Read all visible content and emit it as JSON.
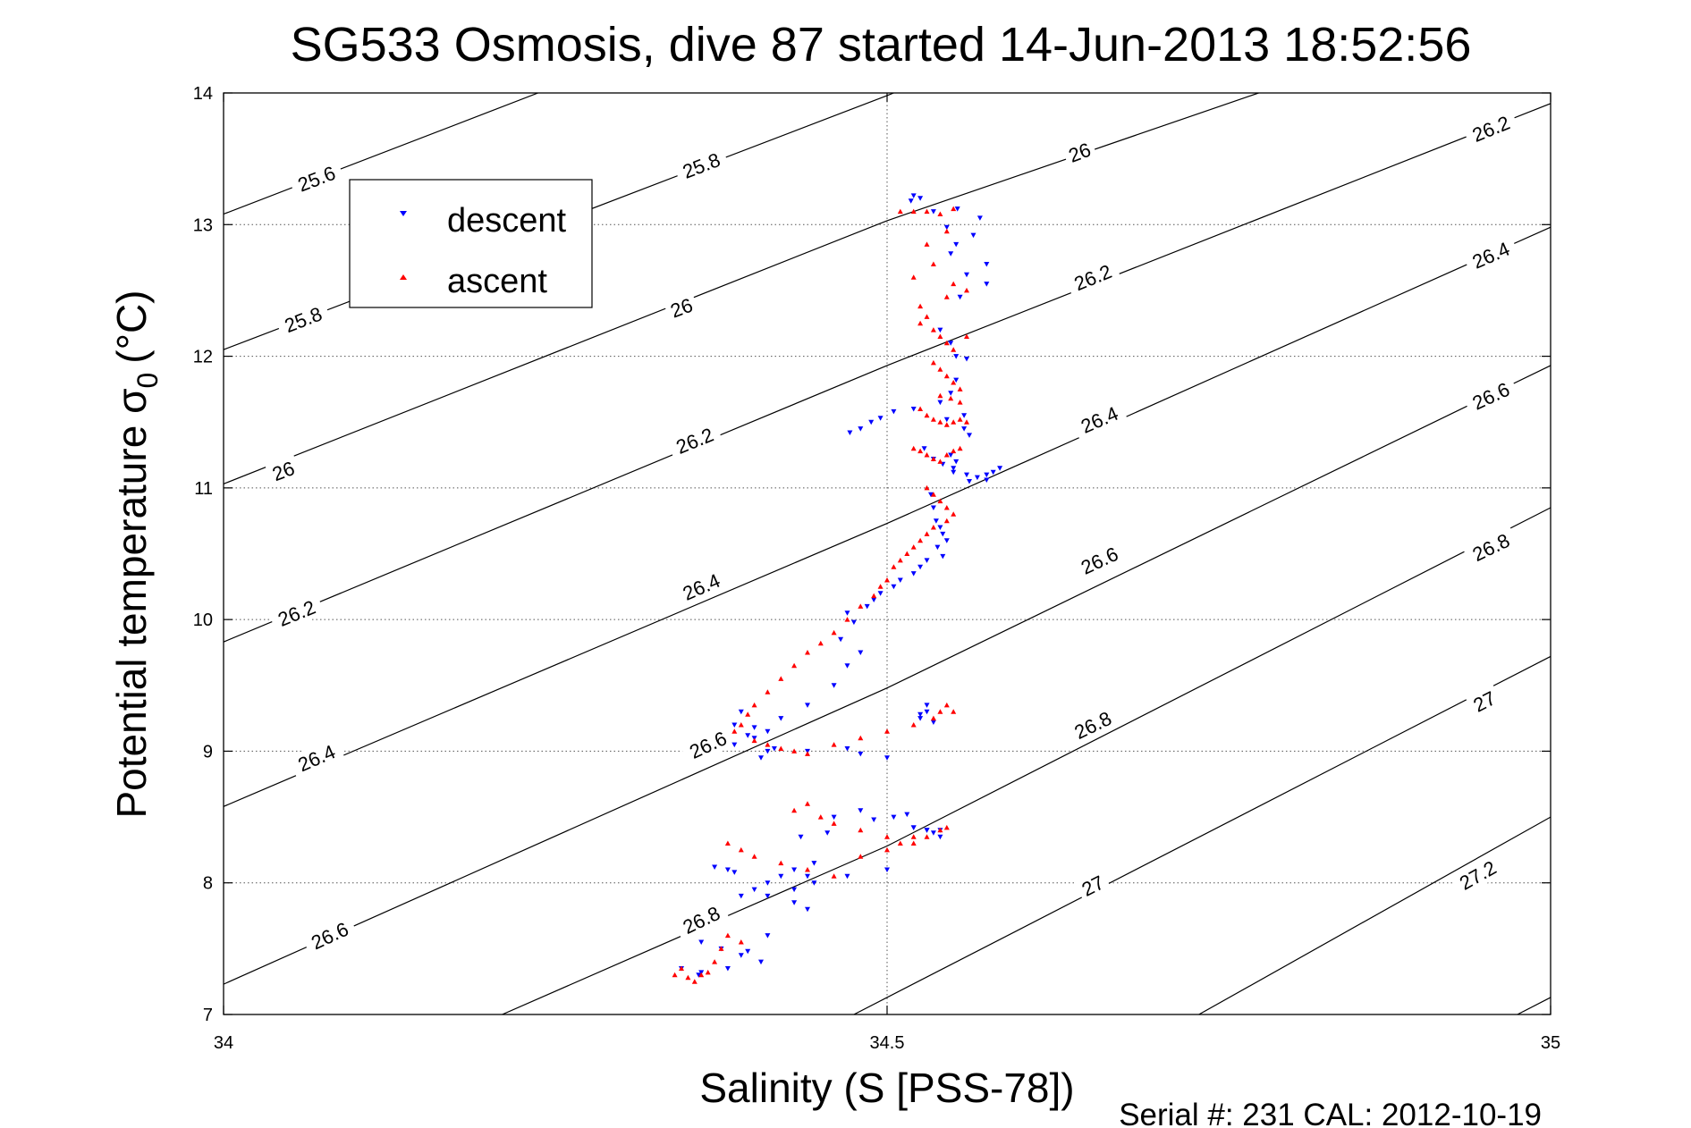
{
  "chart_data": {
    "type": "scatter",
    "title": "SG533 Osmosis, dive 87 started 14-Jun-2013 18:52:56",
    "xlabel": "Salinity (S [PSS-78])",
    "ylabel_main": "Potential temperature σ",
    "ylabel_sub": "0",
    "ylabel_unit": "(°C)",
    "footer": "Serial #: 231  CAL: 2012-10-19",
    "xlim": [
      34,
      35
    ],
    "ylim": [
      7,
      14
    ],
    "xticks": [
      {
        "value": 34,
        "label": "34"
      },
      {
        "value": 34.5,
        "label": "34.5"
      },
      {
        "value": 35,
        "label": "35"
      }
    ],
    "yticks": [
      {
        "value": 7,
        "label": "7"
      },
      {
        "value": 8,
        "label": "8"
      },
      {
        "value": 9,
        "label": "9"
      },
      {
        "value": 10,
        "label": "10"
      },
      {
        "value": 11,
        "label": "11"
      },
      {
        "value": 12,
        "label": "12"
      },
      {
        "value": 13,
        "label": "13"
      },
      {
        "value": 14,
        "label": "14"
      }
    ],
    "grid": true,
    "legend": {
      "position": "top-left",
      "entries": [
        {
          "name": "descent",
          "color": "#0000ff",
          "marker": "triangle-down"
        },
        {
          "name": "ascent",
          "color": "#ff0000",
          "marker": "triangle-up"
        }
      ]
    },
    "isopycnals": [
      {
        "sigma": 25.6,
        "label": "25.6",
        "points": [
          [
            34.0,
            13.08
          ],
          [
            34.237,
            14.0
          ]
        ],
        "labels": [
          {
            "text": "25.6",
            "at": [
              34.07,
              13.35
            ]
          }
        ]
      },
      {
        "sigma": 25.8,
        "label": "25.8",
        "points": [
          [
            34.0,
            12.05
          ],
          [
            34.5,
            13.98
          ],
          [
            34.505,
            14.0
          ]
        ],
        "labels": [
          {
            "text": "25.8",
            "at": [
              34.06,
              12.28
            ]
          },
          {
            "text": "25.8",
            "at": [
              34.36,
              13.45
            ]
          }
        ]
      },
      {
        "sigma": 26.0,
        "label": "26",
        "points": [
          [
            34.0,
            11.03
          ],
          [
            34.5,
            13.03
          ],
          [
            34.78,
            14.0
          ]
        ],
        "labels": [
          {
            "text": "26",
            "at": [
              34.045,
              11.13
            ]
          },
          {
            "text": "26",
            "at": [
              34.345,
              12.37
            ]
          },
          {
            "text": "26",
            "at": [
              34.645,
              13.55
            ]
          }
        ]
      },
      {
        "sigma": 26.2,
        "label": "26.2",
        "points": [
          [
            34.0,
            9.83
          ],
          [
            34.5,
            11.93
          ],
          [
            35.0,
            13.92
          ]
        ],
        "labels": [
          {
            "text": "26.2",
            "at": [
              34.055,
              10.05
            ]
          },
          {
            "text": "26.2",
            "at": [
              34.355,
              11.36
            ]
          },
          {
            "text": "26.2",
            "at": [
              34.655,
              12.6
            ]
          },
          {
            "text": "26.2",
            "at": [
              34.955,
              13.73
            ]
          }
        ]
      },
      {
        "sigma": 26.4,
        "label": "26.4",
        "points": [
          [
            34.0,
            8.58
          ],
          [
            34.5,
            10.73
          ],
          [
            35.0,
            12.98
          ]
        ],
        "labels": [
          {
            "text": "26.4",
            "at": [
              34.07,
              8.95
            ]
          },
          {
            "text": "26.4",
            "at": [
              34.36,
              10.25
            ]
          },
          {
            "text": "26.4",
            "at": [
              34.66,
              11.52
            ]
          },
          {
            "text": "26.4",
            "at": [
              34.955,
              12.77
            ]
          }
        ]
      },
      {
        "sigma": 26.6,
        "label": "26.6",
        "points": [
          [
            34.0,
            7.23
          ],
          [
            34.5,
            9.48
          ],
          [
            35.0,
            11.93
          ]
        ],
        "labels": [
          {
            "text": "26.6",
            "at": [
              34.08,
              7.6
            ]
          },
          {
            "text": "26.6",
            "at": [
              34.365,
              9.05
            ]
          },
          {
            "text": "26.6",
            "at": [
              34.66,
              10.45
            ]
          },
          {
            "text": "26.6",
            "at": [
              34.955,
              11.7
            ]
          }
        ]
      },
      {
        "sigma": 26.8,
        "label": "26.8",
        "points": [
          [
            34.21,
            7.0
          ],
          [
            34.5,
            8.28
          ],
          [
            35.0,
            10.85
          ]
        ],
        "labels": [
          {
            "text": "26.8",
            "at": [
              34.36,
              7.72
            ]
          },
          {
            "text": "26.8",
            "at": [
              34.655,
              9.2
            ]
          },
          {
            "text": "26.8",
            "at": [
              34.955,
              10.55
            ]
          }
        ]
      },
      {
        "sigma": 27.0,
        "label": "27",
        "points": [
          [
            34.475,
            7.0
          ],
          [
            35.0,
            9.72
          ]
        ],
        "labels": [
          {
            "text": "27",
            "at": [
              34.655,
              7.98
            ]
          },
          {
            "text": "27",
            "at": [
              34.95,
              9.38
            ]
          }
        ]
      },
      {
        "sigma": 27.2,
        "label": "27.2",
        "points": [
          [
            34.735,
            7.0
          ],
          [
            35.0,
            8.5
          ]
        ],
        "labels": [
          {
            "text": "27.2",
            "at": [
              34.945,
              8.06
            ]
          }
        ]
      },
      {
        "sigma": 27.4,
        "label": "",
        "points": [
          [
            34.975,
            7.0
          ],
          [
            35.0,
            7.13
          ]
        ],
        "labels": []
      }
    ],
    "series": [
      {
        "name": "descent",
        "color": "#0000ff",
        "marker": "triangle-down",
        "x": [
          34.52,
          34.525,
          34.518,
          34.535,
          34.553,
          34.545,
          34.57,
          34.565,
          34.552,
          34.548,
          34.575,
          34.575,
          34.56,
          34.555,
          34.54,
          34.548,
          34.552,
          34.56,
          34.552,
          34.548,
          34.54,
          34.545,
          34.558,
          34.558,
          34.562,
          34.472,
          34.48,
          34.488,
          34.495,
          34.505,
          34.52,
          34.528,
          34.535,
          34.542,
          34.55,
          34.56,
          34.548,
          34.55,
          34.552,
          34.562,
          34.568,
          34.575,
          34.58,
          34.585,
          34.575,
          34.533,
          34.535,
          34.537,
          34.54,
          34.542,
          34.545,
          34.538,
          34.542,
          34.53,
          34.525,
          34.52,
          34.51,
          34.505,
          34.495,
          34.49,
          34.485,
          34.47,
          34.475,
          34.465,
          34.48,
          34.47,
          34.46,
          34.44,
          34.42,
          34.4,
          34.395,
          34.385,
          34.39,
          34.385,
          34.4,
          34.41,
          34.415,
          34.41,
          34.405,
          34.44,
          34.47,
          34.48,
          34.5,
          34.525,
          34.53,
          34.525,
          34.53,
          34.535,
          34.435,
          34.455,
          34.46,
          34.48,
          34.49,
          34.505,
          34.515,
          34.52,
          34.53,
          34.54,
          34.445,
          34.43,
          34.42,
          34.41,
          34.4,
          34.39,
          34.41,
          34.43,
          34.445,
          34.36,
          34.375,
          34.345,
          34.358,
          34.36,
          34.52,
          34.53,
          34.535,
          34.54,
          34.44,
          34.47,
          34.5,
          34.44,
          34.43,
          34.37,
          34.38,
          34.385,
          34.39,
          34.395,
          34.38,
          34.405,
          34.41
        ],
        "y": [
          13.22,
          13.2,
          13.18,
          13.1,
          13.12,
          12.98,
          13.05,
          12.92,
          12.85,
          12.78,
          12.7,
          12.55,
          12.62,
          12.45,
          12.2,
          12.1,
          12.0,
          11.98,
          11.82,
          11.72,
          11.65,
          11.52,
          11.45,
          11.55,
          11.4,
          11.42,
          11.45,
          11.5,
          11.53,
          11.58,
          11.6,
          11.3,
          11.22,
          11.18,
          11.12,
          11.1,
          11.25,
          11.15,
          11.2,
          11.05,
          11.08,
          11.1,
          11.12,
          11.15,
          11.06,
          10.95,
          10.85,
          10.75,
          10.7,
          10.65,
          10.6,
          10.55,
          10.48,
          10.45,
          10.4,
          10.35,
          10.3,
          10.25,
          10.2,
          10.15,
          10.1,
          10.05,
          9.98,
          9.85,
          9.75,
          9.65,
          9.5,
          9.35,
          9.25,
          9.18,
          9.12,
          9.2,
          9.3,
          9.05,
          9.1,
          9.15,
          9.02,
          9.0,
          8.95,
          9.0,
          9.02,
          8.98,
          8.95,
          9.28,
          9.3,
          9.25,
          9.35,
          9.22,
          8.35,
          8.38,
          8.5,
          8.55,
          8.48,
          8.5,
          8.52,
          8.42,
          8.4,
          8.4,
          8.15,
          8.1,
          8.05,
          8.0,
          7.95,
          7.9,
          7.9,
          7.95,
          8.0,
          7.55,
          7.5,
          7.35,
          7.3,
          7.32,
          8.42,
          8.4,
          8.38,
          8.35,
          8.05,
          8.05,
          8.1,
          7.8,
          7.85,
          8.12,
          8.1,
          8.08,
          7.45,
          7.48,
          7.35,
          7.4,
          7.6
        ]
      },
      {
        "name": "ascent",
        "color": "#ff0000",
        "marker": "triangle-up",
        "x": [
          34.51,
          34.52,
          34.53,
          34.54,
          34.55,
          34.545,
          34.53,
          34.535,
          34.52,
          34.55,
          34.56,
          34.545,
          34.525,
          34.53,
          34.525,
          34.535,
          34.54,
          34.545,
          34.55,
          34.56,
          34.535,
          34.54,
          34.545,
          34.55,
          34.555,
          34.54,
          34.548,
          34.555,
          34.525,
          34.53,
          34.535,
          34.54,
          34.545,
          34.55,
          34.555,
          34.56,
          34.52,
          34.525,
          34.53,
          34.535,
          34.54,
          34.545,
          34.55,
          34.555,
          34.53,
          34.535,
          34.54,
          34.545,
          34.55,
          34.545,
          34.535,
          34.53,
          34.525,
          34.52,
          34.515,
          34.51,
          34.505,
          34.5,
          34.495,
          34.49,
          34.48,
          34.47,
          34.46,
          34.45,
          34.44,
          34.43,
          34.42,
          34.41,
          34.4,
          34.395,
          34.39,
          34.385,
          34.4,
          34.41,
          34.42,
          34.43,
          34.44,
          34.46,
          34.48,
          34.5,
          34.52,
          34.535,
          34.54,
          34.545,
          34.55,
          34.43,
          34.44,
          34.45,
          34.46,
          34.48,
          34.5,
          34.52,
          34.53,
          34.54,
          34.545,
          34.38,
          34.39,
          34.4,
          34.42,
          34.44,
          34.46,
          34.48,
          34.5,
          34.51,
          34.52,
          34.34,
          34.345,
          34.35,
          34.355,
          34.36,
          34.365,
          34.37,
          34.375,
          34.38,
          34.39
        ],
        "y": [
          13.1,
          13.1,
          13.1,
          13.08,
          13.12,
          12.95,
          12.85,
          12.7,
          12.6,
          12.55,
          12.5,
          12.45,
          12.38,
          12.3,
          12.25,
          12.2,
          12.15,
          12.1,
          12.05,
          12.15,
          11.95,
          11.9,
          11.85,
          11.8,
          11.75,
          11.7,
          11.68,
          11.65,
          11.6,
          11.55,
          11.52,
          11.5,
          11.48,
          11.5,
          11.52,
          11.5,
          11.3,
          11.28,
          11.25,
          11.22,
          11.2,
          11.25,
          11.28,
          11.3,
          11.0,
          10.95,
          10.9,
          10.85,
          10.8,
          10.75,
          10.7,
          10.65,
          10.6,
          10.55,
          10.5,
          10.45,
          10.4,
          10.3,
          10.25,
          10.18,
          10.1,
          10.0,
          9.9,
          9.82,
          9.75,
          9.65,
          9.55,
          9.45,
          9.35,
          9.28,
          9.2,
          9.15,
          9.08,
          9.05,
          9.02,
          9.0,
          8.98,
          9.05,
          9.1,
          9.15,
          9.2,
          9.25,
          9.3,
          9.35,
          9.3,
          8.55,
          8.6,
          8.5,
          8.45,
          8.4,
          8.35,
          8.3,
          8.35,
          8.4,
          8.42,
          8.3,
          8.25,
          8.2,
          8.15,
          8.1,
          8.05,
          8.2,
          8.25,
          8.3,
          8.35,
          7.3,
          7.35,
          7.28,
          7.25,
          7.3,
          7.32,
          7.4,
          7.5,
          7.6,
          7.55
        ]
      }
    ]
  }
}
